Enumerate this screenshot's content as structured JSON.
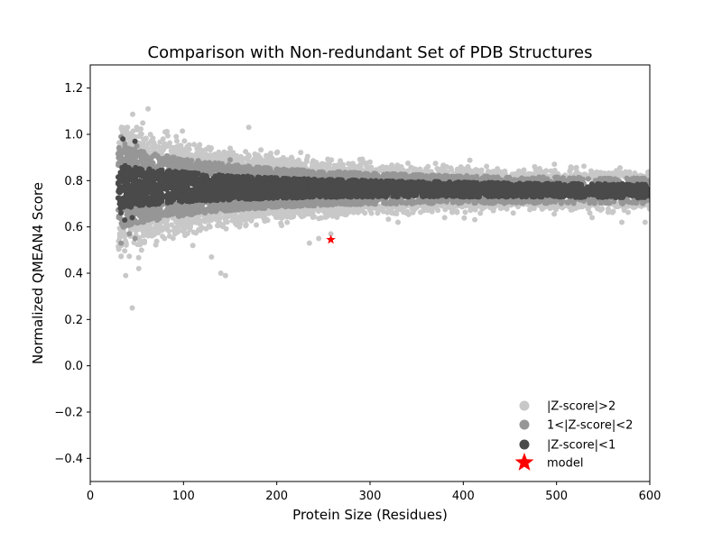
{
  "chart_data": {
    "type": "scatter",
    "title": "Comparison with Non-redundant Set of PDB Structures",
    "xlabel": "Protein Size (Residues)",
    "ylabel": "Normalized QMEAN4 Score",
    "xlim": [
      0,
      600
    ],
    "ylim": [
      -0.5,
      1.3
    ],
    "xticks": [
      0,
      100,
      200,
      300,
      400,
      500,
      600
    ],
    "yticks": [
      -0.4,
      -0.2,
      0.0,
      0.2,
      0.4,
      0.6,
      0.8,
      1.0,
      1.2
    ],
    "xtick_labels": [
      "0",
      "100",
      "200",
      "300",
      "400",
      "500",
      "600"
    ],
    "ytick_labels": [
      "−0.4",
      "−0.2",
      "0.0",
      "0.2",
      "0.4",
      "0.6",
      "0.8",
      "1.0",
      "1.2"
    ],
    "grid": false,
    "legend_position": "bottom-right",
    "series": [
      {
        "name": "|Z-score|>2",
        "color": "#c8c8c8",
        "x_range": [
          30,
          600
        ],
        "points": [
          [
            62,
            1.11
          ],
          [
            40,
            1.03
          ],
          [
            170,
            1.03
          ],
          [
            45,
            0.25
          ],
          [
            38,
            0.39
          ],
          [
            52,
            0.42
          ],
          [
            140,
            0.4
          ],
          [
            145,
            0.39
          ],
          [
            130,
            0.47
          ],
          [
            245,
            0.55
          ],
          [
            235,
            0.53
          ],
          [
            110,
            0.52
          ],
          [
            55,
            0.5
          ],
          [
            100,
            0.58
          ],
          [
            160,
            0.6
          ],
          [
            85,
            0.56
          ],
          [
            570,
            0.62
          ],
          [
            595,
            0.62
          ],
          [
            75,
            0.6
          ],
          [
            95,
            0.95
          ],
          [
            150,
            0.94
          ],
          [
            200,
            0.92
          ],
          [
            120,
            0.93
          ],
          [
            300,
            0.88
          ],
          [
            405,
            0.86
          ],
          [
            258,
            0.57
          ],
          [
            330,
            0.62
          ],
          [
            380,
            0.64
          ]
        ]
      },
      {
        "name": "1<|Z-score|<2",
        "color": "#969696",
        "x_range": [
          30,
          600
        ],
        "points": [
          [
            33,
            0.99
          ],
          [
            33,
            0.53
          ],
          [
            37,
            0.96
          ],
          [
            36,
            0.6
          ],
          [
            50,
            0.95
          ],
          [
            48,
            0.55
          ],
          [
            42,
            0.57
          ],
          [
            90,
            0.9
          ],
          [
            150,
            0.89
          ]
        ]
      },
      {
        "name": "|Z-score|<1",
        "color": "#4a4a4a",
        "x_range": [
          30,
          600
        ],
        "points": [
          [
            35,
            0.98
          ],
          [
            48,
            0.97
          ],
          [
            33,
            0.66
          ],
          [
            37,
            0.63
          ],
          [
            45,
            0.64
          ]
        ]
      },
      {
        "name": "model",
        "color": "#ff0000",
        "marker": "star",
        "points": [
          [
            258,
            0.545
          ]
        ]
      }
    ]
  }
}
